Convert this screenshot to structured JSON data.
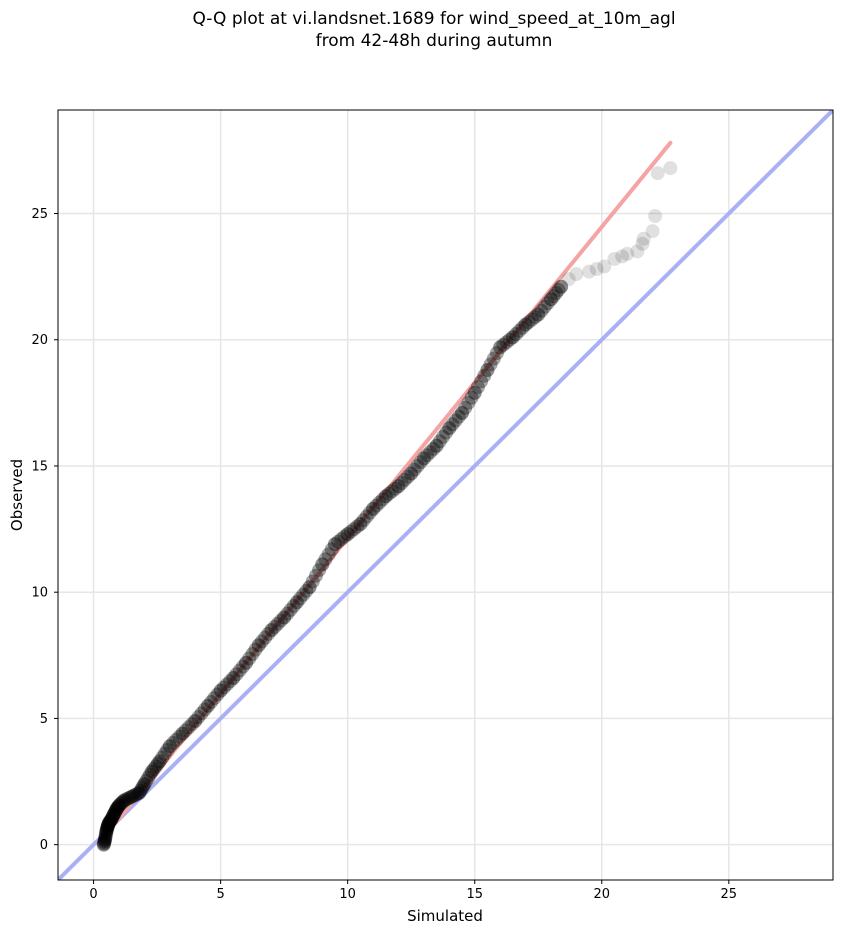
{
  "title_line1": "Q-Q plot at vi.landsnet.1689 for wind_speed_at_10m_agl",
  "title_line2": "from 42-48h during autumn",
  "chart_data": {
    "type": "scatter",
    "title": "Q-Q plot at vi.landsnet.1689 for wind_speed_at_10m_agl from 42-48h during autumn",
    "xlabel": "Simulated",
    "ylabel": "Observed",
    "xlim": [
      -1.4,
      29.1
    ],
    "ylim": [
      -1.4,
      29.1
    ],
    "xticks": [
      0,
      5,
      10,
      15,
      20,
      25
    ],
    "yticks": [
      0,
      5,
      10,
      15,
      20,
      25
    ],
    "grid": true,
    "reference_line": {
      "slope": 1,
      "intercept": 0,
      "color": "#aab0f5"
    },
    "fit_line": {
      "x": [
        0.4,
        22.7
      ],
      "y": [
        0.3,
        27.8
      ],
      "color": "#f5a3a3"
    },
    "marker_color": "#000000",
    "series": [
      {
        "x": [
          0.4,
          0.45,
          0.5,
          0.55,
          0.6,
          0.7,
          0.8,
          0.9,
          1.0,
          1.2,
          1.5,
          1.8,
          2.0,
          2.3,
          2.6,
          3.0,
          3.5,
          4.0,
          4.5,
          5.0,
          5.5,
          6.0,
          6.5,
          7.0,
          7.5,
          8.0,
          8.5,
          9.0,
          9.5,
          10.0,
          10.5,
          11.0,
          11.5,
          12.0,
          12.5,
          13.0,
          13.5,
          14.0,
          14.5,
          15.0,
          15.5,
          16.0,
          16.5,
          17.0,
          17.5,
          18.0,
          18.4,
          18.7,
          19.0,
          19.5,
          19.8,
          20.1,
          20.5,
          20.8,
          21.0,
          21.4,
          21.6,
          21.65,
          22.0,
          22.1,
          22.2,
          22.7
        ],
        "y": [
          0.0,
          0.2,
          0.5,
          0.7,
          0.85,
          1.0,
          1.2,
          1.4,
          1.55,
          1.75,
          1.9,
          2.05,
          2.4,
          2.9,
          3.3,
          3.9,
          4.4,
          4.9,
          5.5,
          6.1,
          6.6,
          7.2,
          7.9,
          8.5,
          9.0,
          9.6,
          10.2,
          11.1,
          11.9,
          12.3,
          12.7,
          13.3,
          13.8,
          14.2,
          14.7,
          15.3,
          15.8,
          16.5,
          17.1,
          17.9,
          18.8,
          19.7,
          20.1,
          20.6,
          21.0,
          21.6,
          22.1,
          22.4,
          22.6,
          22.7,
          22.8,
          22.9,
          23.2,
          23.3,
          23.4,
          23.5,
          23.8,
          24.0,
          24.3,
          24.9,
          26.6,
          26.8
        ]
      }
    ]
  }
}
